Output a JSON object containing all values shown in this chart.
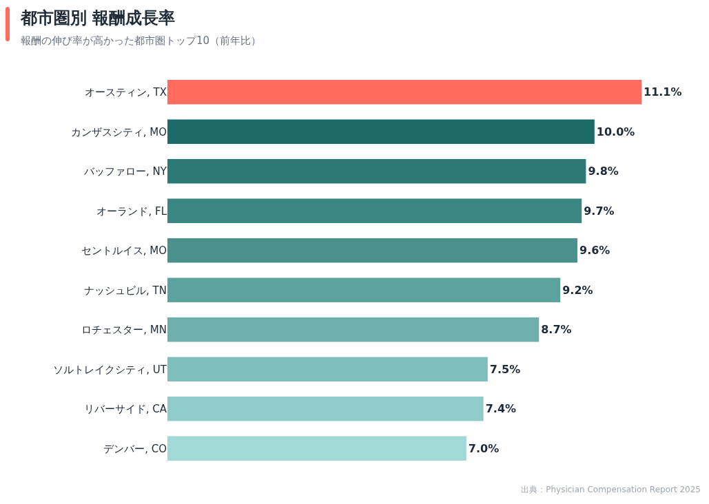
{
  "chart_data": {
    "type": "bar",
    "orientation": "horizontal",
    "title": "都市圏別 報酬成長率",
    "subtitle": "報酬の伸び率が高かった都市圏トップ10（前年比）",
    "categories": [
      "オースティン, TX",
      "カンザスシティ, MO",
      "バッファロー, NY",
      "オーランド, FL",
      "セントルイス, MO",
      "ナッシュビル, TN",
      "ロチェスター, MN",
      "ソルトレイクシティ, UT",
      "リバーサイド, CA",
      "デンバー, CO"
    ],
    "values": [
      11.1,
      10.0,
      9.8,
      9.7,
      9.6,
      9.2,
      8.7,
      7.5,
      7.4,
      7.0
    ],
    "value_labels": [
      "11.1%",
      "10.0%",
      "9.8%",
      "9.7%",
      "9.6%",
      "9.2%",
      "8.7%",
      "7.5%",
      "7.4%",
      "7.0%"
    ],
    "colors": [
      "#ff6b5e",
      "#1c6b6a",
      "#2c7a77",
      "#3a8682",
      "#4a918d",
      "#5ca29e",
      "#6eafab",
      "#7fbfbb",
      "#8fcbc8",
      "#a1d9d6"
    ],
    "annotations": [
      "出典：Physician Compensation Report 2025"
    ]
  }
}
